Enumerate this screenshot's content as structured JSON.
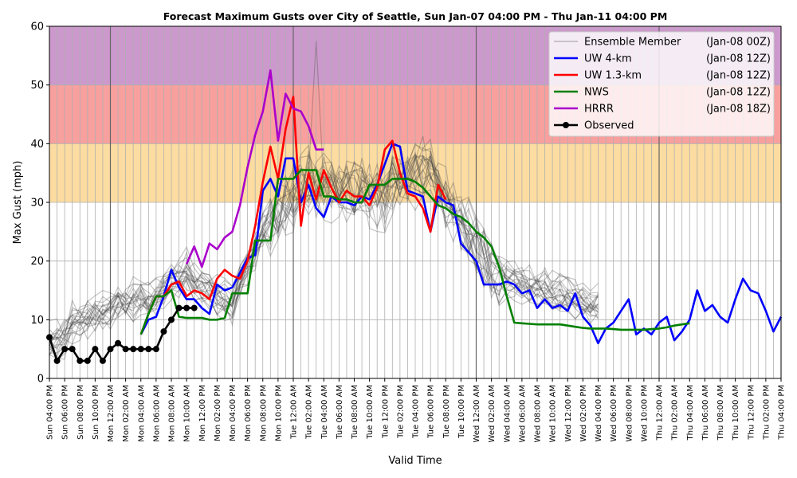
{
  "chart_data": {
    "type": "line",
    "title": "Forecast Maximum Gusts over City of Seattle, Sun Jan-07 04:00 PM - Thu Jan-11 04:00 PM",
    "xlabel": "Valid Time",
    "ylabel": "Max Gust (mph)",
    "ylim": [
      0,
      60
    ],
    "yticks": [
      0,
      10,
      20,
      30,
      40,
      50,
      60
    ],
    "x_unit": "hours since Sun Jan-07 04:00 PM",
    "x_range": [
      0,
      96
    ],
    "grid": true,
    "legend_position": "top-right",
    "threshold_bands": [
      {
        "from": 30,
        "to": 40,
        "color": "#fcdca0"
      },
      {
        "from": 40,
        "to": 50,
        "color": "#f7a09e"
      },
      {
        "from": 50,
        "to": 60,
        "color": "#cc99cc"
      }
    ],
    "day_boundaries": [
      8,
      32,
      56,
      80
    ],
    "xtick_labels": [
      "Sun 04:00 PM",
      "Sun 06:00 PM",
      "Sun 08:00 PM",
      "Sun 10:00 PM",
      "Mon 12:00 AM",
      "Mon 02:00 AM",
      "Mon 04:00 AM",
      "Mon 06:00 AM",
      "Mon 08:00 AM",
      "Mon 10:00 AM",
      "Mon 12:00 PM",
      "Mon 02:00 PM",
      "Mon 04:00 PM",
      "Mon 06:00 PM",
      "Mon 08:00 PM",
      "Mon 10:00 PM",
      "Tue 12:00 AM",
      "Tue 02:00 AM",
      "Tue 04:00 AM",
      "Tue 06:00 AM",
      "Tue 08:00 AM",
      "Tue 10:00 AM",
      "Tue 12:00 PM",
      "Tue 02:00 PM",
      "Tue 04:00 PM",
      "Tue 06:00 PM",
      "Tue 08:00 PM",
      "Tue 10:00 PM",
      "Wed 12:00 AM",
      "Wed 02:00 AM",
      "Wed 04:00 AM",
      "Wed 06:00 AM",
      "Wed 08:00 AM",
      "Wed 10:00 AM",
      "Wed 12:00 PM",
      "Wed 02:00 PM",
      "Wed 04:00 PM",
      "Wed 06:00 PM",
      "Wed 08:00 PM",
      "Wed 10:00 PM",
      "Thu 12:00 AM",
      "Thu 02:00 AM",
      "Thu 04:00 AM",
      "Thu 06:00 AM",
      "Thu 08:00 AM",
      "Thu 10:00 AM",
      "Thu 12:00 PM",
      "Thu 02:00 PM",
      "Thu 04:00 PM"
    ],
    "legend": [
      {
        "label": "Ensemble Member",
        "run": "(Jan-08 00Z)",
        "color": "#808080",
        "marker": "none"
      },
      {
        "label": "UW 4-km",
        "run": "(Jan-08 12Z)",
        "color": "#0000ff",
        "marker": "none"
      },
      {
        "label": "UW 1.3-km",
        "run": "(Jan-08 12Z)",
        "color": "#ff0000",
        "marker": "none"
      },
      {
        "label": "NWS",
        "run": "(Jan-08 12Z)",
        "color": "#008000",
        "marker": "none"
      },
      {
        "label": "HRRR",
        "run": "(Jan-08 18Z)",
        "color": "#aa00cc",
        "marker": "none"
      },
      {
        "label": "Observed",
        "run": "",
        "color": "#000000",
        "marker": "circle"
      }
    ],
    "series": [
      {
        "name": "UW 4-km",
        "color": "#0000ff",
        "x_start": 12,
        "step": 1,
        "values": [
          7.5,
          10,
          10.5,
          14,
          18.5,
          15.5,
          13.5,
          13.5,
          12,
          11,
          16,
          15,
          15.5,
          18,
          20.5,
          21,
          32,
          34,
          31,
          37.5,
          37.5,
          30,
          33,
          29,
          27.5,
          31,
          30,
          30,
          29.5,
          31,
          30.5,
          33,
          36.5,
          40,
          39.5,
          32,
          31.5,
          31,
          25,
          31,
          30,
          29.5,
          23,
          21.5,
          20,
          16,
          16,
          16,
          16.5,
          16,
          14.5,
          15,
          12,
          13.5,
          12,
          12.5,
          11.5,
          14.5,
          10.5,
          9,
          6,
          8.5,
          9.5,
          11.5,
          13.5,
          7.5,
          8.5,
          7.5,
          9.5,
          10.5,
          6.5,
          8,
          10,
          15,
          11.5,
          12.5,
          10.5,
          9.5,
          13.5,
          17,
          15,
          14.5,
          11.5,
          8,
          10.5
        ]
      },
      {
        "name": "UW 1.3-km",
        "color": "#ff0000",
        "x_start": 12,
        "step": 1,
        "values": [
          7.5,
          11,
          14,
          14,
          16,
          16.5,
          14,
          15,
          14.5,
          13.5,
          17,
          18.5,
          17.5,
          17,
          20,
          26,
          33.5,
          39.5,
          34,
          42.5,
          48,
          26,
          35,
          30.5,
          35.5,
          32.5,
          30,
          32,
          31,
          31,
          29.5,
          32.5,
          39,
          40.5,
          35,
          31.5,
          31,
          29,
          25,
          33,
          30.5
        ]
      },
      {
        "name": "NWS",
        "color": "#008000",
        "x_start": 12,
        "step": 1,
        "values": [
          7.5,
          11,
          14,
          14,
          15,
          10.5,
          10.3,
          10.3,
          10.3,
          10,
          10,
          10.3,
          14.5,
          14.5,
          14.5,
          23.5,
          23.5,
          23.5,
          34,
          34,
          34,
          35.5,
          35.5,
          35.5,
          31,
          31,
          30.5,
          30.5,
          30,
          30,
          33,
          33,
          33,
          34,
          34,
          34,
          33.5,
          32.5,
          31,
          29.5,
          29,
          28,
          27.5,
          26.5,
          25,
          24,
          22.5,
          19,
          14,
          9.5,
          9.4,
          9.3,
          9.2,
          9.2,
          9.2,
          9.2,
          9,
          8.8,
          8.6,
          8.5,
          8.5,
          8.5,
          8.4,
          8.3,
          8.3,
          8.3,
          8.3,
          8.4,
          8.5,
          8.7,
          9,
          9.2,
          9.4
        ]
      },
      {
        "name": "HRRR",
        "color": "#aa00cc",
        "x_start": 18,
        "step": 1,
        "values": [
          19.5,
          22.5,
          19,
          23,
          22,
          24,
          25,
          29.5,
          36,
          41.5,
          45.5,
          52.5,
          40.5,
          48.5,
          46,
          45.5,
          43,
          39,
          39
        ]
      },
      {
        "name": "Observed",
        "color": "#000000",
        "marker": "circle",
        "x_start": 0,
        "step": 1,
        "values": [
          7,
          3,
          5,
          5,
          3,
          3,
          5,
          3,
          5,
          6,
          5,
          5,
          5,
          5,
          5,
          8,
          10,
          12,
          12,
          12
        ]
      }
    ]
  }
}
